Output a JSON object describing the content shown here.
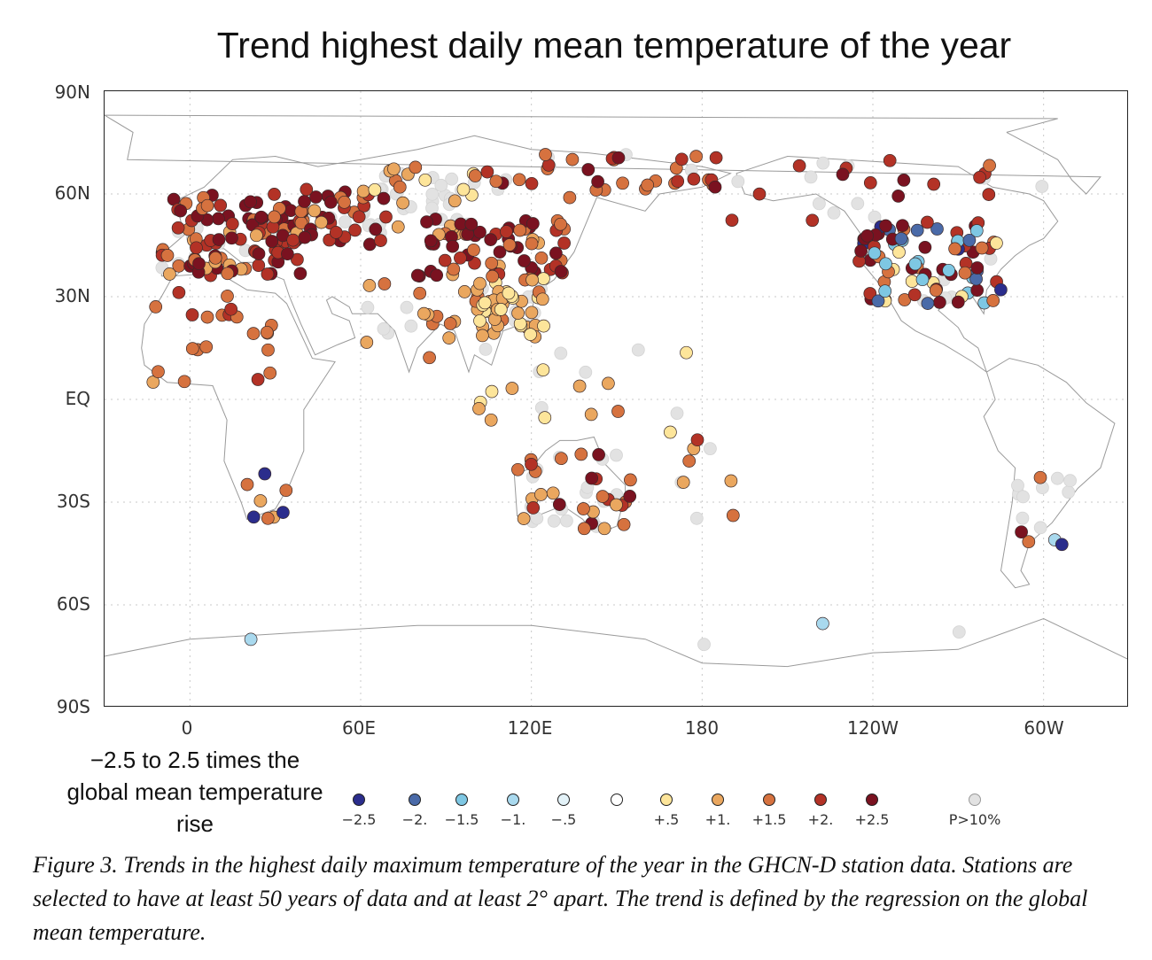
{
  "title": "Trend highest daily mean temperature of the year",
  "lat_ticks": [
    "90N",
    "60N",
    "30N",
    "EQ",
    "30S",
    "60S",
    "90S"
  ],
  "lon_ticks": [
    "0",
    "60E",
    "120E",
    "180",
    "120W",
    "60W"
  ],
  "legend": {
    "title": "−2.5 to 2.5 times the global mean temperature rise",
    "items": [
      {
        "label": "−2.5",
        "color": "#2b2d8c"
      },
      {
        "label": "−2.",
        "color": "#4a6aa8"
      },
      {
        "label": "−1.5",
        "color": "#7ec7e3"
      },
      {
        "label": "−1.",
        "color": "#a9d9ee"
      },
      {
        "label": "−.5",
        "color": "#e3f2f8"
      },
      {
        "label": "",
        "color": "#ffffff"
      },
      {
        "label": "+.5",
        "color": "#fde59a"
      },
      {
        "label": "+1.",
        "color": "#eaa75f"
      },
      {
        "label": "+1.5",
        "color": "#d6723f"
      },
      {
        "label": "+2.",
        "color": "#b33226"
      },
      {
        "label": "+2.5",
        "color": "#7a1220"
      },
      {
        "label": "P>10%",
        "color": "#e2e2e2"
      }
    ]
  },
  "caption": "Figure 3. Trends in the highest daily maximum temperature of the year in the GHCN-D station data. Stations are selected to have at least 50 years of data and at least 2° apart. The trend is defined by the regression on the global mean temperature.",
  "map_data": {
    "projection": "equirectangular",
    "lon_range": [
      -30,
      330
    ],
    "lat_range": [
      -90,
      90
    ],
    "colors": {
      "n25": "#2b2d8c",
      "n20": "#4a6aa8",
      "n15": "#7ec7e3",
      "n10": "#a9d9ee",
      "n05": "#e3f2f8",
      "zero": "#ffffff",
      "p05": "#fde59a",
      "p10": "#eaa75f",
      "p15": "#d6723f",
      "p20": "#b33226",
      "p25": "#7a1220",
      "ns": "#e2e2e2"
    },
    "regions": [
      {
        "lon": [
          -10,
          40
        ],
        "lat": [
          36,
          60
        ],
        "n": 120,
        "mix": {
          "p25": 5,
          "p20": 3,
          "p15": 2,
          "p10": 1,
          "ns": 1
        }
      },
      {
        "lon": [
          40,
          70
        ],
        "lat": [
          45,
          62
        ],
        "n": 40,
        "mix": {
          "p25": 3,
          "p20": 2,
          "p15": 1,
          "p10": 1,
          "ns": 2
        }
      },
      {
        "lon": [
          60,
          100
        ],
        "lat": [
          48,
          68
        ],
        "n": 45,
        "mix": {
          "ns": 5,
          "p10": 2,
          "p05": 1,
          "p15": 1
        }
      },
      {
        "lon": [
          80,
          135
        ],
        "lat": [
          36,
          54
        ],
        "n": 60,
        "mix": {
          "p25": 5,
          "p20": 2,
          "p15": 2,
          "p10": 1
        }
      },
      {
        "lon": [
          100,
          125
        ],
        "lat": [
          18,
          36
        ],
        "n": 55,
        "mix": {
          "p10": 4,
          "p05": 3,
          "p15": 2,
          "ns": 1
        }
      },
      {
        "lon": [
          60,
          100
        ],
        "lat": [
          12,
          35
        ],
        "n": 18,
        "mix": {
          "p10": 3,
          "p15": 1,
          "ns": 2
        }
      },
      {
        "lon": [
          100,
          190
        ],
        "lat": [
          58,
          72
        ],
        "n": 40,
        "mix": {
          "p15": 3,
          "p20": 3,
          "ns": 2,
          "p25": 1
        }
      },
      {
        "lon": [
          235,
          285
        ],
        "lat": [
          28,
          52
        ],
        "n": 90,
        "mix": {
          "p25": 3,
          "p20": 3,
          "p15": 2,
          "n15": 2,
          "n20": 1,
          "n25": 1,
          "ns": 1,
          "p05": 1
        }
      },
      {
        "lon": [
          190,
          300
        ],
        "lat": [
          52,
          70
        ],
        "n": 25,
        "mix": {
          "p20": 3,
          "p25": 2,
          "ns": 2,
          "p15": 1
        }
      },
      {
        "lon": [
          115,
          155
        ],
        "lat": [
          -38,
          -15
        ],
        "n": 45,
        "mix": {
          "ns": 3,
          "p15": 2,
          "p25": 2,
          "p10": 1,
          "p20": 1
        }
      },
      {
        "lon": [
          290,
          310
        ],
        "lat": [
          -45,
          -22
        ],
        "n": 14,
        "mix": {
          "ns": 4,
          "n10": 1,
          "n25": 1,
          "p15": 1,
          "p25": 1
        }
      },
      {
        "lon": [
          -18,
          30
        ],
        "lat": [
          5,
          32
        ],
        "n": 22,
        "mix": {
          "p15": 3,
          "p20": 2,
          "p10": 1
        }
      },
      {
        "lon": [
          15,
          35
        ],
        "lat": [
          -35,
          -20
        ],
        "n": 8,
        "mix": {
          "p10": 3,
          "p15": 2,
          "n25": 1
        }
      },
      {
        "lon": [
          100,
          180
        ],
        "lat": [
          -10,
          15
        ],
        "n": 20,
        "mix": {
          "p05": 2,
          "p10": 2,
          "ns": 2,
          "p15": 1
        }
      },
      {
        "lon": [
          150,
          200
        ],
        "lat": [
          -40,
          -10
        ],
        "n": 10,
        "mix": {
          "ns": 3,
          "p10": 1,
          "p15": 1,
          "p20": 1
        }
      },
      {
        "lon": [
          -30,
          330
        ],
        "lat": [
          -75,
          -60
        ],
        "n": 4,
        "mix": {
          "ns": 3,
          "n10": 1
        }
      }
    ]
  }
}
